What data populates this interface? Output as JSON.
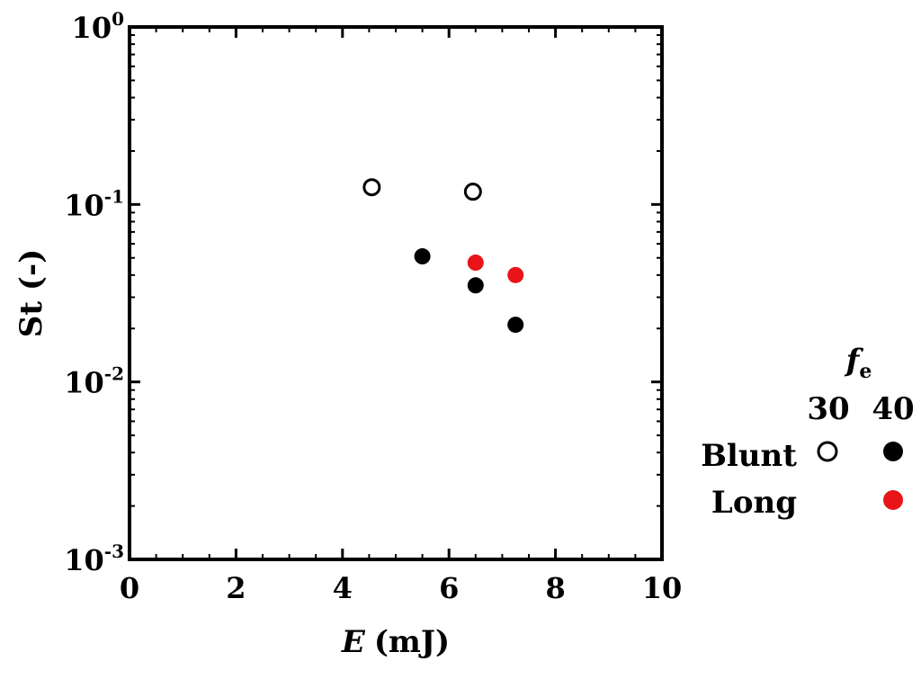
{
  "chart_data": {
    "type": "scatter",
    "xlabel_var": "E",
    "xlabel_unit": "(mJ)",
    "ylabel": "St  (-)",
    "xlim": [
      0,
      10
    ],
    "ylim": [
      0.001,
      1
    ],
    "yscale": "log",
    "x_ticks": [
      "0",
      "2",
      "4",
      "6",
      "8",
      "10"
    ],
    "y_ticks": [
      {
        "base": "10",
        "exp": "0",
        "value": 1
      },
      {
        "base": "10",
        "exp": "-1",
        "value": 0.1
      },
      {
        "base": "10",
        "exp": "-2",
        "value": 0.01
      },
      {
        "base": "10",
        "exp": "-3",
        "value": 0.001
      }
    ],
    "series": [
      {
        "name": "Blunt, fe = 30",
        "marker": "open-circle",
        "color": "#000000",
        "points": [
          {
            "x": 4.55,
            "y": 0.125
          },
          {
            "x": 6.45,
            "y": 0.118
          }
        ]
      },
      {
        "name": "Blunt, fe = 40",
        "marker": "filled-circle",
        "color": "#000000",
        "points": [
          {
            "x": 5.5,
            "y": 0.051
          },
          {
            "x": 6.5,
            "y": 0.035
          },
          {
            "x": 7.25,
            "y": 0.021
          }
        ]
      },
      {
        "name": "Long, fe = 40",
        "marker": "filled-circle",
        "color": "#e8141a",
        "points": [
          {
            "x": 6.5,
            "y": 0.047
          },
          {
            "x": 7.25,
            "y": 0.04
          }
        ]
      }
    ],
    "legend": {
      "title_var": "f",
      "title_sub": "e",
      "columns": [
        "30",
        "40"
      ],
      "rows": [
        {
          "label": "Blunt",
          "col30": "open-black",
          "col40": "filled-black"
        },
        {
          "label": "Long",
          "col30": "",
          "col40": "filled-red"
        }
      ],
      "placement": "right"
    }
  }
}
